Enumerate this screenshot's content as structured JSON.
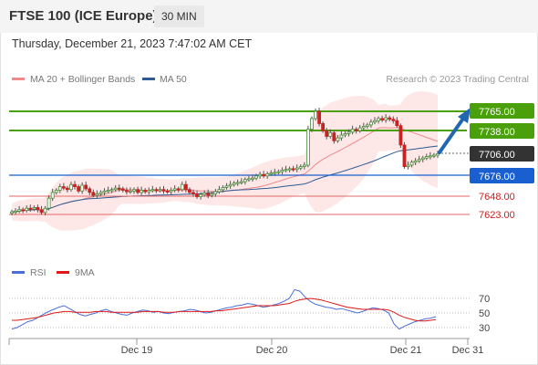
{
  "header": {
    "title": "FTSE 100 (ICE Europe)",
    "interval": "30 MIN"
  },
  "timestamp": "Thursday, December 21, 2023 7:47:02 AM CET",
  "legend": {
    "ma20": "MA 20 + Bollinger Bands",
    "ma50": "MA 50",
    "credit": "Research © 2023 Trading Central"
  },
  "colors": {
    "resistance": "#4aa00a",
    "support": "#1a5fcf",
    "secondary_support": "#e36a6a",
    "current_price": "#333333",
    "candle_up": "#4a8a3a",
    "candle_down": "#c92222",
    "ma20": "#f08a8a",
    "ma50": "#2d5b93",
    "bollinger_fill": "#fde4e4",
    "rsi": "#4a6fd6",
    "rsi_ma": "#e01818",
    "arrow": "#2066b0"
  },
  "levels": [
    {
      "value": "7765.00",
      "type": "resistance"
    },
    {
      "value": "7738.00",
      "type": "resistance"
    },
    {
      "value": "7706.00",
      "type": "current"
    },
    {
      "value": "7676.00",
      "type": "support"
    },
    {
      "value": "7648.00",
      "type": "secondary_support"
    },
    {
      "value": "7623.00",
      "type": "secondary_support"
    }
  ],
  "x_axis_labels": [
    "Dec 19",
    "Dec 20",
    "Dec 21",
    "Dec 31"
  ],
  "rsi_panel": {
    "rsi_label": "RSI",
    "ma_label": "9MA",
    "ticks": [
      "70",
      "50",
      "30"
    ]
  },
  "chart_data": {
    "type": "candlestick",
    "price_levels": [
      7765,
      7738,
      7706,
      7676,
      7648,
      7623
    ],
    "close_series": [
      7625,
      7626,
      7628,
      7627,
      7630,
      7629,
      7631,
      7628,
      7624,
      7630,
      7644,
      7652,
      7655,
      7660,
      7658,
      7656,
      7663,
      7660,
      7654,
      7662,
      7657,
      7652,
      7648,
      7650,
      7652,
      7654,
      7655,
      7656,
      7658,
      7657,
      7655,
      7653,
      7654,
      7656,
      7652,
      7655,
      7653,
      7655,
      7656,
      7655,
      7656,
      7654,
      7653,
      7655,
      7657,
      7656,
      7663,
      7656,
      7652,
      7650,
      7646,
      7649,
      7651,
      7648,
      7650,
      7653,
      7656,
      7659,
      7661,
      7663,
      7665,
      7666,
      7667,
      7670,
      7671,
      7672,
      7675,
      7677,
      7675,
      7678,
      7679,
      7680,
      7681,
      7683,
      7684,
      7685,
      7684,
      7686,
      7688,
      7690,
      7740,
      7755,
      7765,
      7748,
      7738,
      7730,
      7735,
      7724,
      7728,
      7732,
      7734,
      7736,
      7740,
      7738,
      7742,
      7744,
      7746,
      7750,
      7752,
      7755,
      7753,
      7756,
      7754,
      7752,
      7745,
      7718,
      7688,
      7690,
      7694,
      7696,
      7698,
      7700,
      7702,
      7703,
      7704,
      7706
    ],
    "rsi": [
      28,
      30,
      34,
      38,
      40,
      44,
      48,
      52,
      55,
      58,
      60,
      56,
      52,
      48,
      46,
      48,
      50,
      53,
      55,
      52,
      50,
      48,
      47,
      50,
      52,
      54,
      53,
      51,
      52,
      50,
      49,
      51,
      52,
      53,
      55,
      54,
      52,
      50,
      51,
      53,
      55,
      57,
      58,
      60,
      61,
      63,
      62,
      60,
      58,
      59,
      61,
      63,
      66,
      70,
      82,
      80,
      72,
      66,
      62,
      60,
      58,
      57,
      55,
      56,
      54,
      52,
      50,
      52,
      55,
      57,
      56,
      54,
      50,
      35,
      28,
      32,
      35,
      38,
      40,
      42,
      43,
      45
    ],
    "rsi_ma": [
      40,
      40,
      41,
      42,
      43,
      44,
      46,
      48,
      50,
      51,
      52,
      52,
      51,
      51,
      51,
      51,
      52,
      52,
      52,
      51,
      51,
      51,
      51,
      51,
      51,
      52,
      52,
      52,
      52,
      51,
      51,
      51,
      52,
      52,
      52,
      52,
      52,
      52,
      52,
      53,
      53,
      54,
      55,
      56,
      57,
      58,
      59,
      60,
      60,
      60,
      60,
      61,
      62,
      63,
      66,
      68,
      69,
      70,
      69,
      68,
      66,
      64,
      62,
      60,
      58,
      57,
      56,
      55,
      55,
      55,
      55,
      55,
      54,
      51,
      47,
      44,
      42,
      40,
      39,
      39,
      40,
      41
    ],
    "xlabel": "",
    "ylabel": ""
  }
}
